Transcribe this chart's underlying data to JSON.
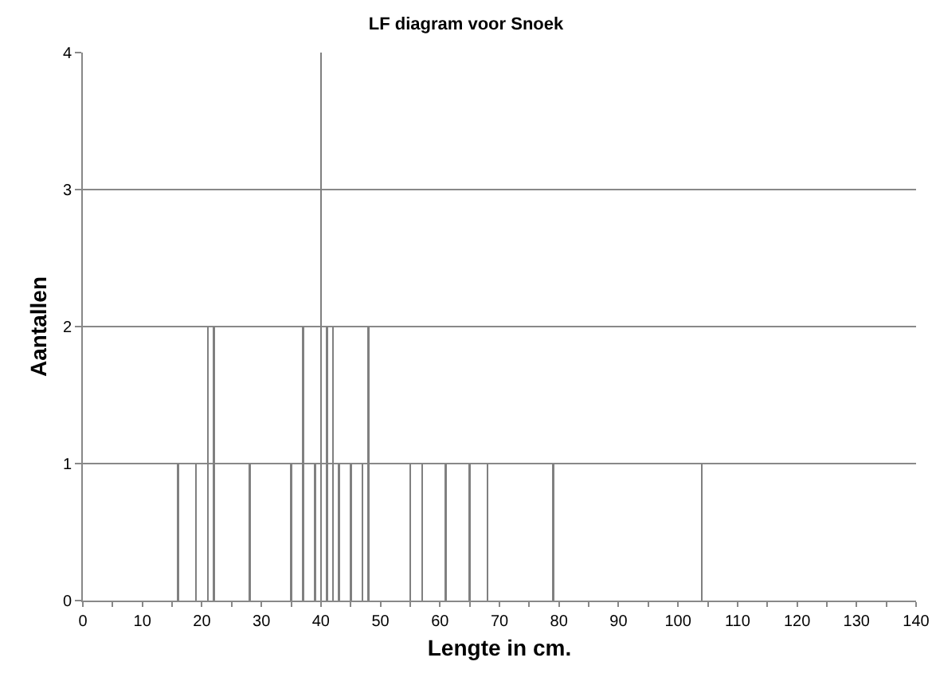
{
  "chart_data": {
    "type": "bar",
    "title": "LF diagram voor Snoek",
    "xlabel": "Lengte in cm.",
    "ylabel": "Aantallen",
    "x": [
      16,
      19,
      21,
      22,
      28,
      35,
      37,
      39,
      40,
      41,
      42,
      43,
      45,
      47,
      48,
      55,
      57,
      61,
      65,
      68,
      79,
      104
    ],
    "values": [
      1,
      1,
      2,
      2,
      1,
      1,
      2,
      1,
      4,
      2,
      2,
      1,
      1,
      1,
      2,
      1,
      1,
      1,
      1,
      1,
      1,
      1
    ],
    "color": "#808080",
    "xlim": [
      0,
      140
    ],
    "xticks": [
      0,
      {
        "value": 5,
        "label": null
      },
      10,
      {
        "value": 15,
        "label": null
      },
      20,
      {
        "value": 25,
        "label": null
      },
      30,
      {
        "value": 35,
        "label": null
      },
      40,
      {
        "value": 45,
        "label": null
      },
      50,
      {
        "value": 55,
        "label": null
      },
      60,
      {
        "value": 65,
        "label": null
      },
      70,
      {
        "value": 75,
        "label": null
      },
      80,
      {
        "value": 85,
        "label": null
      },
      90,
      {
        "value": 95,
        "label": null
      },
      100,
      {
        "value": 105,
        "label": null
      },
      110,
      {
        "value": 115,
        "label": null
      },
      120,
      {
        "value": 125,
        "label": null
      },
      130,
      {
        "value": 135,
        "label": null
      },
      140
    ],
    "ylim": [
      0,
      4
    ],
    "yticks": [
      0,
      1,
      2,
      3,
      4
    ],
    "grid": "y"
  }
}
